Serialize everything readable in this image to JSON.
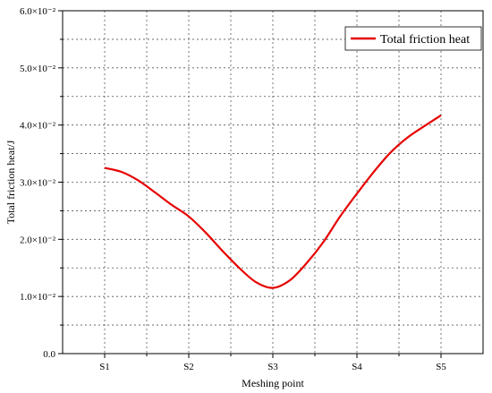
{
  "chart_data": {
    "type": "line",
    "xlabel": "Meshing point",
    "ylabel": "Total friction heat/J",
    "categories": [
      "S1",
      "S2",
      "S3",
      "S4",
      "S5"
    ],
    "ylim": [
      0,
      0.06
    ],
    "y_ticks": [
      {
        "value": 0.0,
        "label": "0.0"
      },
      {
        "value": 0.01,
        "label": "1.0×10⁻²"
      },
      {
        "value": 0.02,
        "label": "2.0×10⁻²"
      },
      {
        "value": 0.03,
        "label": "3.0×10⁻²"
      },
      {
        "value": 0.04,
        "label": "4.0×10⁻²"
      },
      {
        "value": 0.05,
        "label": "5.0×10⁻²"
      },
      {
        "value": 0.06,
        "label": "6.0×10⁻²"
      }
    ],
    "grid": true,
    "legend_position": "top-right",
    "series": [
      {
        "name": "Total friction heat",
        "color": "#e60000",
        "points": [
          {
            "x": 1.0,
            "y": 0.0325
          },
          {
            "x": 1.2,
            "y": 0.0318
          },
          {
            "x": 1.4,
            "y": 0.0303
          },
          {
            "x": 1.6,
            "y": 0.0282
          },
          {
            "x": 1.8,
            "y": 0.026
          },
          {
            "x": 2.0,
            "y": 0.024
          },
          {
            "x": 2.2,
            "y": 0.0212
          },
          {
            "x": 2.4,
            "y": 0.018
          },
          {
            "x": 2.6,
            "y": 0.015
          },
          {
            "x": 2.8,
            "y": 0.0125
          },
          {
            "x": 3.0,
            "y": 0.0115
          },
          {
            "x": 3.2,
            "y": 0.0128
          },
          {
            "x": 3.4,
            "y": 0.0158
          },
          {
            "x": 3.6,
            "y": 0.0195
          },
          {
            "x": 3.8,
            "y": 0.024
          },
          {
            "x": 4.0,
            "y": 0.028
          },
          {
            "x": 4.2,
            "y": 0.0318
          },
          {
            "x": 4.4,
            "y": 0.0352
          },
          {
            "x": 4.6,
            "y": 0.0378
          },
          {
            "x": 4.8,
            "y": 0.0398
          },
          {
            "x": 5.0,
            "y": 0.0417
          }
        ]
      }
    ]
  }
}
